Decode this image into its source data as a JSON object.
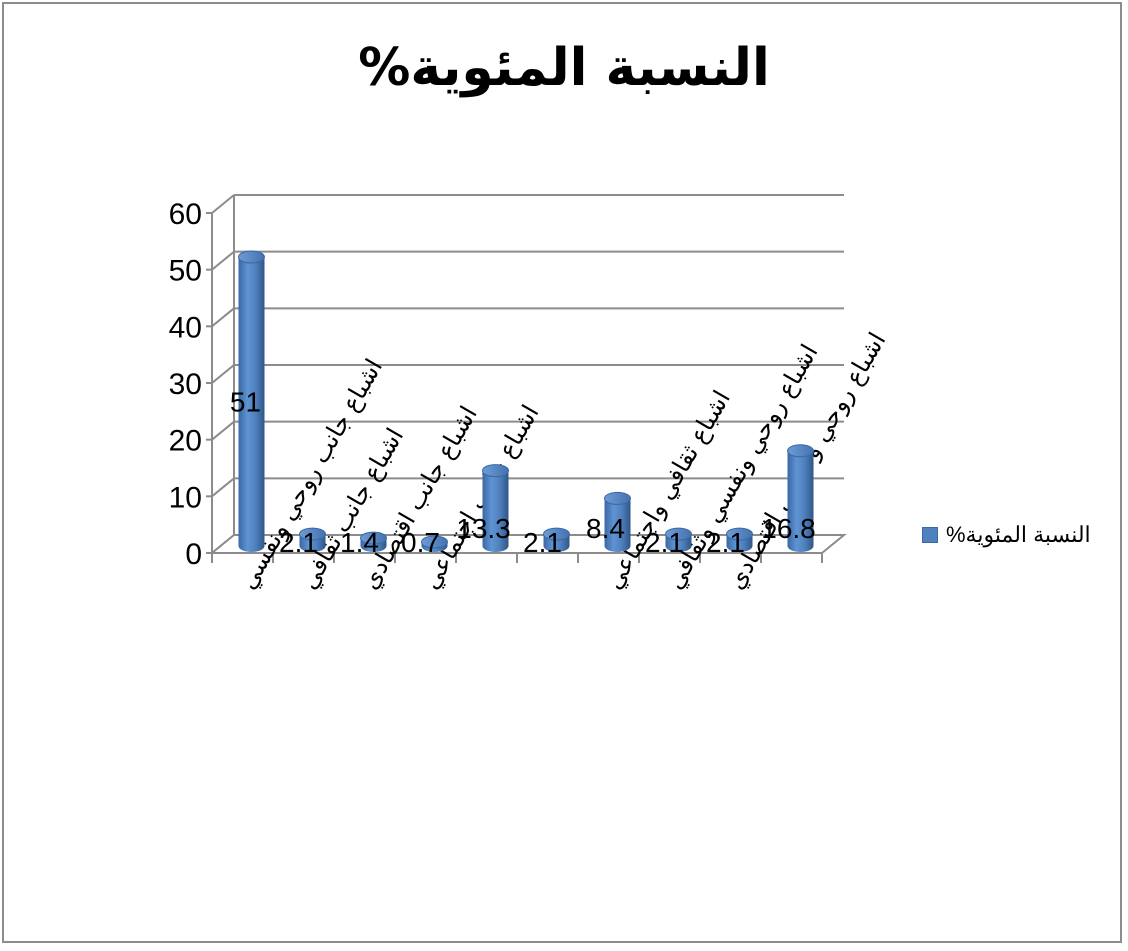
{
  "chart_data": {
    "type": "bar",
    "title": "النسبة المئوية%",
    "legend": {
      "label": "النسبة المئوية%",
      "placement": "right"
    },
    "series": [
      {
        "name": "النسبة المئوية%",
        "color": "#4f81bd"
      }
    ],
    "categories": [
      "اشباع جانب روحي ونفسي",
      "اشباع جانب ثقافي",
      "اشباع جانب اقتصادي",
      "اشباع جانب اجتماعي",
      "",
      "",
      "اشباع ثقافي واجتماعي",
      "اشباع روحي ونفسي وثقافي",
      "اشباع روحي ونفسي اقتصادي",
      ""
    ],
    "values": [
      51,
      2.1,
      1.4,
      0.7,
      13.3,
      2.1,
      8.4,
      2.1,
      2.1,
      16.8
    ],
    "data_labels": [
      "51",
      "2.1",
      "1.4",
      "0.7",
      "13.3",
      "2.1",
      "8.4",
      "2.1",
      "2.1",
      "16.8"
    ],
    "ylim": [
      0,
      60
    ],
    "yticks": [
      "0",
      "10",
      "20",
      "30",
      "40",
      "50",
      "60"
    ],
    "grid": true
  }
}
